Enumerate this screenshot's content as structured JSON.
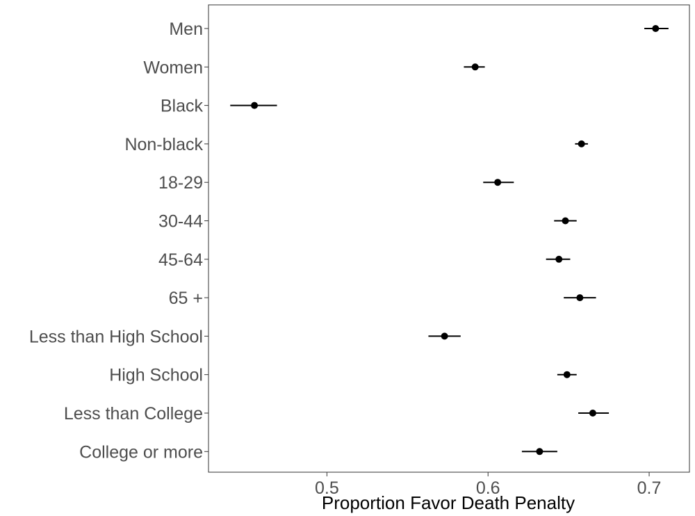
{
  "chart_data": {
    "type": "scatter",
    "subtype": "dot-with-error-bars",
    "title": "",
    "xlabel": "Proportion Favor Death Penalty",
    "ylabel": "",
    "xlim": [
      0.4265,
      0.725
    ],
    "x_ticks": [
      0.5,
      0.6,
      0.7
    ],
    "x_tick_labels": [
      "0.5",
      "0.6",
      "0.7"
    ],
    "grid": false,
    "legend": "none",
    "point_color": "#000000",
    "categories": [
      "Men",
      "Women",
      "Black",
      "Non-black",
      "18-29",
      "30-44",
      "45-64",
      "65 +",
      "Less than High School",
      "High School",
      "Less than College",
      "College or more"
    ],
    "estimates": [
      0.704,
      0.592,
      0.455,
      0.658,
      0.606,
      0.648,
      0.644,
      0.657,
      0.573,
      0.649,
      0.665,
      0.632
    ],
    "lower": [
      0.697,
      0.585,
      0.44,
      0.654,
      0.597,
      0.641,
      0.636,
      0.647,
      0.563,
      0.643,
      0.656,
      0.621
    ],
    "upper": [
      0.712,
      0.598,
      0.469,
      0.662,
      0.616,
      0.655,
      0.651,
      0.667,
      0.583,
      0.655,
      0.675,
      0.643
    ]
  }
}
